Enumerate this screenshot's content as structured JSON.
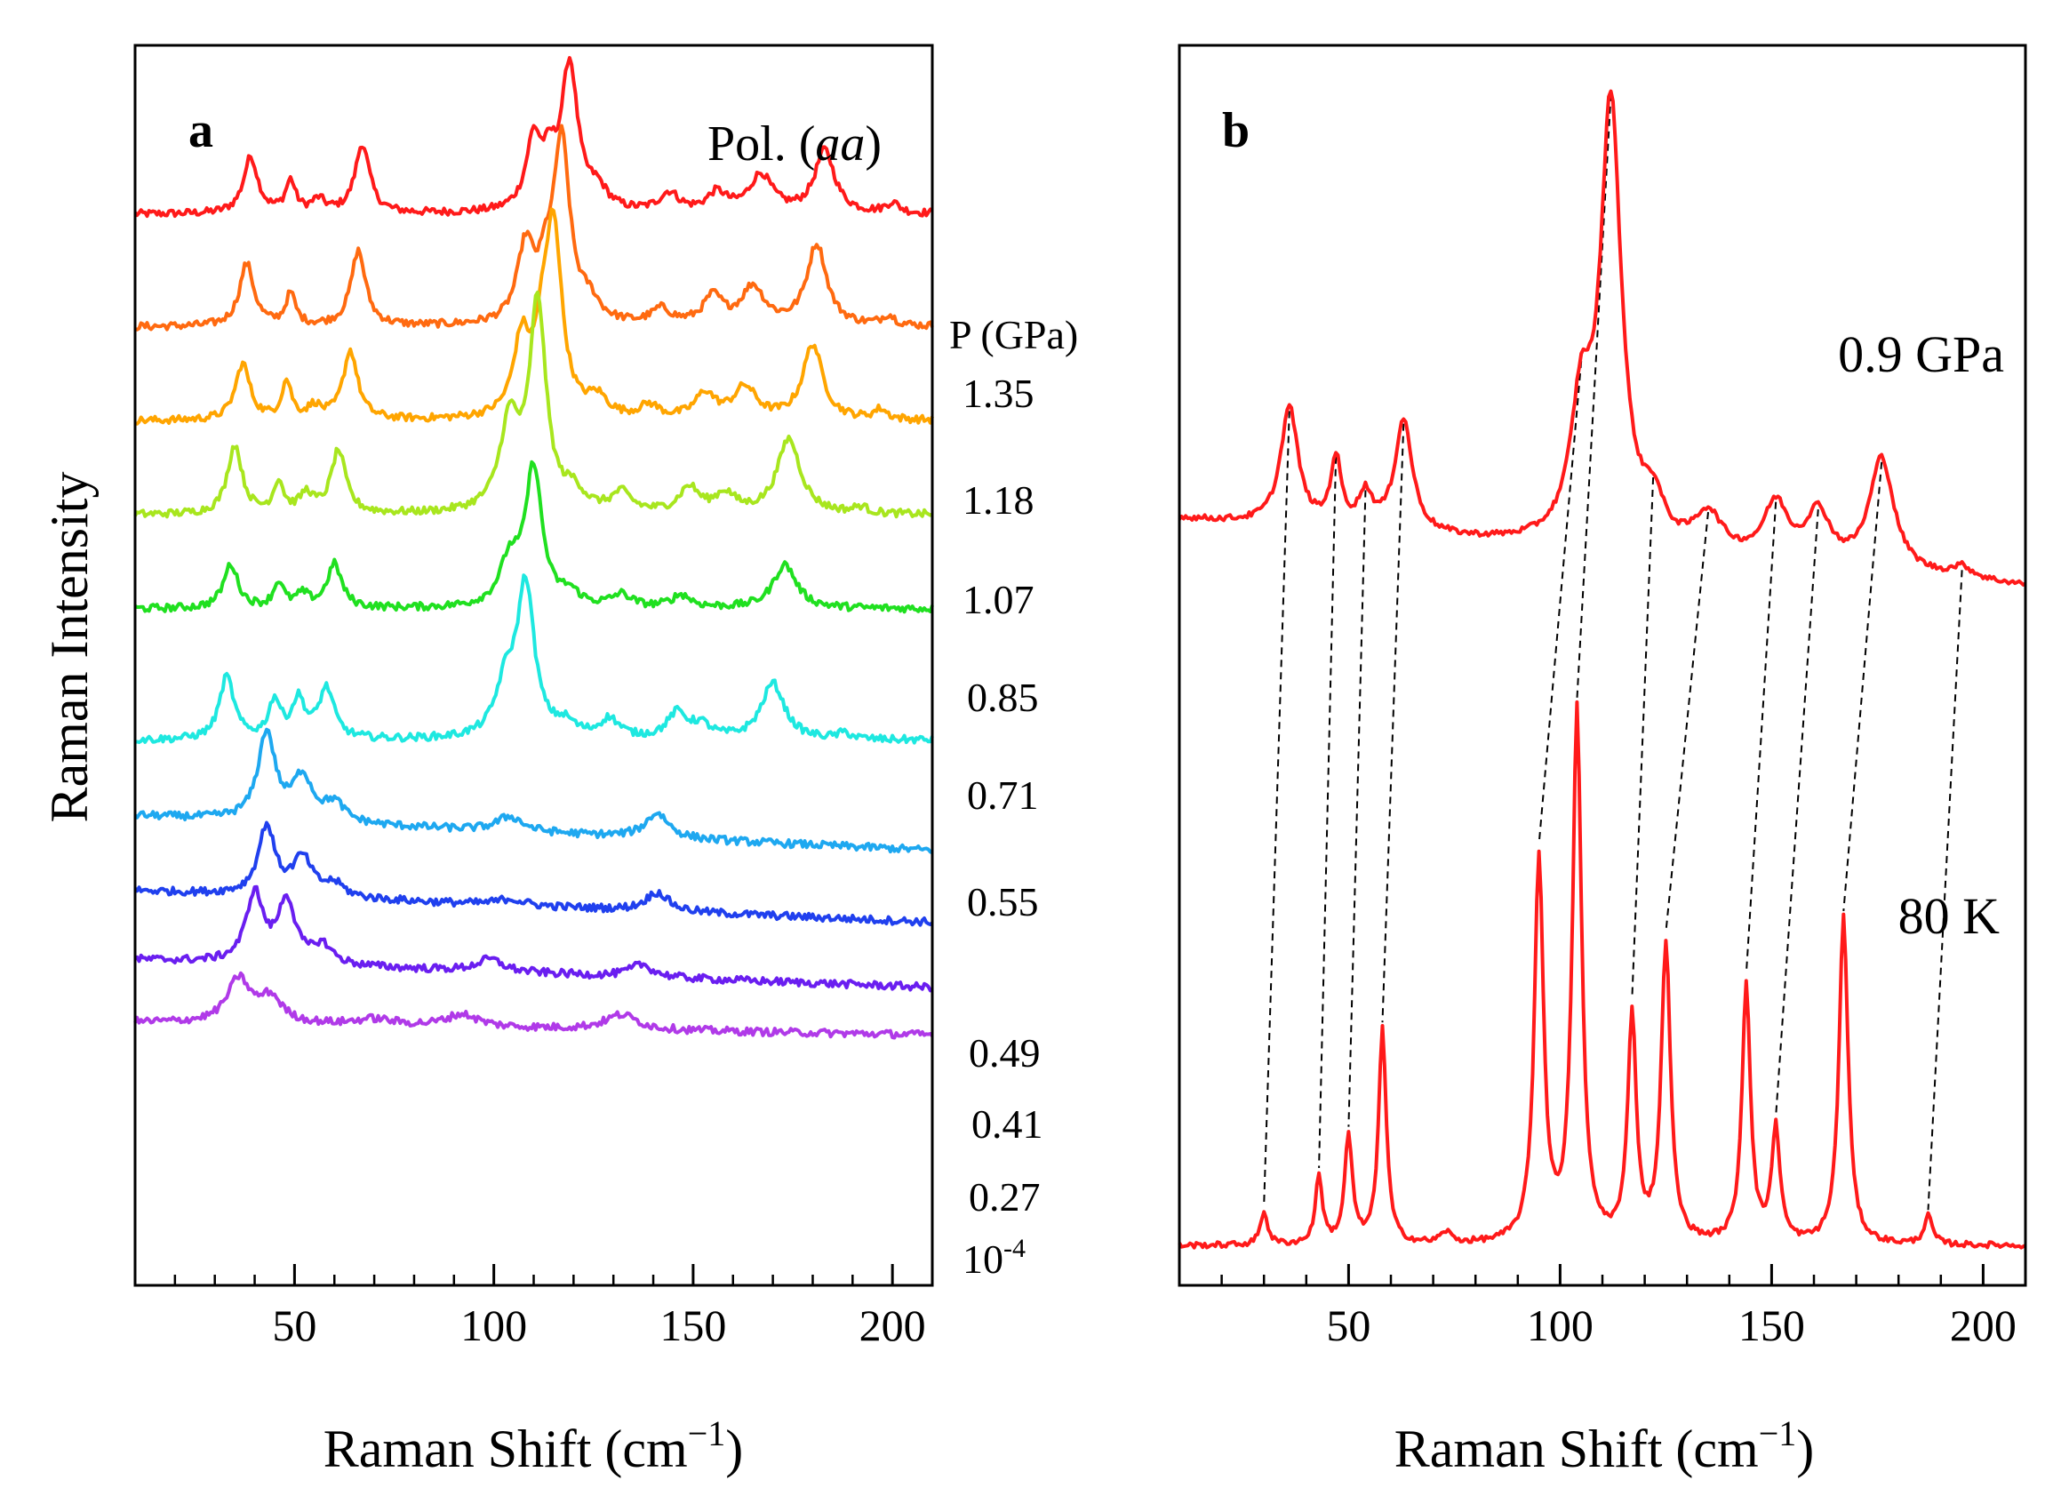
{
  "chart_data": [
    {
      "type": "line",
      "panel_label": "a",
      "annotation": "Pol. (aa)",
      "annotation_prefix": "Pol. (",
      "annotation_italic": "aa",
      "annotation_suffix": ")",
      "xlabel_main": "Raman Shift (cm",
      "xlabel_sup": "−1",
      "xlabel_close": ")",
      "ylabel": "Raman Intensity",
      "xlim": [
        10,
        210
      ],
      "xticks": [
        50,
        100,
        150,
        200
      ],
      "ylim": [
        -0.2,
        9.7
      ],
      "pressure_header": "P (GPa)",
      "series": [
        {
          "name": "1.35",
          "label": "1.35",
          "color": "#ff1a1a",
          "baseline": 8.35,
          "slope": 0,
          "peaks": [
            [
              39,
              0.45,
              2.2
            ],
            [
              49,
              0.25,
              1.5
            ],
            [
              56,
              0.1,
              2
            ],
            [
              67,
              0.55,
              2.2
            ],
            [
              110,
              0.55,
              2.3
            ],
            [
              114,
              0.3,
              2
            ],
            [
              119,
              1.15,
              2.5
            ],
            [
              126,
              0.15,
              3
            ],
            [
              144,
              0.15,
              3
            ],
            [
              156,
              0.15,
              3
            ],
            [
              167,
              0.3,
              3.5
            ],
            [
              183,
              0.5,
              3
            ],
            [
              200,
              0.08,
              2
            ]
          ]
        },
        {
          "name": "1.18",
          "label": "1.18",
          "color": "#ff6a10",
          "baseline": 7.45,
          "slope": 0,
          "peaks": [
            [
              38,
              0.5,
              2.2
            ],
            [
              49,
              0.25,
              1.5
            ],
            [
              66,
              0.6,
              2.2
            ],
            [
              108,
              0.6,
              2.5
            ],
            [
              113,
              0.3,
              2
            ],
            [
              117,
              1.45,
              2.5
            ],
            [
              124,
              0.15,
              3
            ],
            [
              142,
              0.12,
              3
            ],
            [
              155,
              0.22,
              3
            ],
            [
              165,
              0.3,
              3.5
            ],
            [
              181,
              0.65,
              3
            ],
            [
              199,
              0.08,
              2
            ]
          ]
        },
        {
          "name": "1.07",
          "label": "1.07",
          "color": "#ffa500",
          "baseline": 6.7,
          "slope": 0,
          "peaks": [
            [
              37,
              0.45,
              2.2
            ],
            [
              48,
              0.3,
              1.5
            ],
            [
              55,
              0.1,
              2
            ],
            [
              64,
              0.55,
              2.2
            ],
            [
              107,
              0.6,
              2.5
            ],
            [
              112,
              0.4,
              2
            ],
            [
              115,
              1.5,
              2.5
            ],
            [
              126,
              0.15,
              3
            ],
            [
              139,
              0.1,
              3
            ],
            [
              153,
              0.2,
              3
            ],
            [
              163,
              0.25,
              3.5
            ],
            [
              180,
              0.6,
              3
            ],
            [
              197,
              0.08,
              2
            ]
          ]
        },
        {
          "name": "0.85",
          "label": "0.85",
          "color": "#a8e61e",
          "baseline": 5.95,
          "slope": 0,
          "peaks": [
            [
              35,
              0.55,
              2.2
            ],
            [
              46,
              0.25,
              1.5
            ],
            [
              53,
              0.15,
              2
            ],
            [
              61,
              0.5,
              2.2
            ],
            [
              104,
              0.7,
              3
            ],
            [
              111,
              1.65,
              2.5
            ],
            [
              120,
              0.15,
              3
            ],
            [
              132,
              0.15,
              3
            ],
            [
              149,
              0.2,
              3
            ],
            [
              158,
              0.15,
              3
            ],
            [
              174,
              0.6,
              3.5
            ],
            [
              192,
              0.05,
              2
            ]
          ]
        },
        {
          "name": "0.71",
          "label": "0.71",
          "color": "#20e020",
          "baseline": 5.2,
          "slope": 0,
          "peaks": [
            [
              34,
              0.35,
              2.2
            ],
            [
              46,
              0.2,
              1.5
            ],
            [
              52,
              0.1,
              2
            ],
            [
              60,
              0.35,
              2.2
            ],
            [
              104,
              0.35,
              3
            ],
            [
              110,
              1.1,
              2.5
            ],
            [
              119,
              0.1,
              3
            ],
            [
              132,
              0.1,
              3
            ],
            [
              147,
              0.1,
              3
            ],
            [
              173,
              0.35,
              3.5
            ]
          ]
        },
        {
          "name": "0.55",
          "label": "0.55",
          "color": "#1ee8e0",
          "baseline": 4.15,
          "slope": 0,
          "peaks": [
            [
              33,
              0.5,
              2.2
            ],
            [
              45,
              0.3,
              1.8
            ],
            [
              51,
              0.3,
              2
            ],
            [
              58,
              0.4,
              2.3
            ],
            [
              103,
              0.4,
              3
            ],
            [
              108,
              1.2,
              2.6
            ],
            [
              118,
              0.1,
              3
            ],
            [
              129,
              0.15,
              3
            ],
            [
              146,
              0.2,
              3
            ],
            [
              152,
              0.1,
              3
            ],
            [
              170,
              0.45,
              3.5
            ],
            [
              188,
              0.05,
              2
            ]
          ]
        },
        {
          "name": "0.49",
          "label": "0.49",
          "color": "#1ea8f0",
          "baseline": 3.55,
          "slope": -0.00138,
          "peaks": [
            [
              43,
              0.7,
              2.6
            ],
            [
              52,
              0.35,
              3
            ],
            [
              60,
              0.15,
              3
            ],
            [
              104,
              0.12,
              4
            ],
            [
              141,
              0.2,
              3.5
            ]
          ]
        },
        {
          "name": "0.41",
          "label": "0.41",
          "color": "#2040ee",
          "baseline": 2.95,
          "slope": -0.00125,
          "peaks": [
            [
              43,
              0.55,
              2.5
            ],
            [
              52,
              0.3,
              3
            ],
            [
              60,
              0.1,
              3
            ],
            [
              104,
              0.05,
              4
            ],
            [
              141,
              0.15,
              3.5
            ]
          ]
        },
        {
          "name": "0.27",
          "label": "0.27",
          "color": "#6a1ef0",
          "baseline": 2.4,
          "slope": -0.0011,
          "peaks": [
            [
              40,
              0.55,
              2.6
            ],
            [
              48,
              0.5,
              2.6
            ],
            [
              57,
              0.15,
              3
            ],
            [
              99,
              0.1,
              4
            ],
            [
              137,
              0.1,
              3.5
            ]
          ]
        },
        {
          "name": "10-4",
          "label": "10",
          "label_sup": "-4",
          "color": "#b03ae8",
          "baseline": 1.9,
          "slope": -0.0005,
          "peaks": [
            [
              36,
              0.35,
              3.5
            ],
            [
              44,
              0.2,
              3.5
            ],
            [
              70,
              0.05,
              6
            ],
            [
              92,
              0.1,
              5
            ],
            [
              132,
              0.12,
              5
            ]
          ]
        }
      ]
    },
    {
      "type": "line",
      "panel_label": "b",
      "xlabel_main": "Raman Shift (cm",
      "xlabel_sup": "−1",
      "xlabel_close": ")",
      "xlim": [
        10,
        210
      ],
      "xticks": [
        50,
        100,
        150,
        200
      ],
      "ylim": [
        0,
        11
      ],
      "series": [
        {
          "name": "0.9 GPa",
          "label": "0.9 GPa",
          "color": "#ff1a1a",
          "baseline": 6.8,
          "slope": -0.003,
          "peaks": [
            [
              36,
              1.05,
              2.5
            ],
            [
              47,
              0.6,
              1.5
            ],
            [
              54,
              0.3,
              2
            ],
            [
              63,
              1.0,
              2.5
            ],
            [
              105,
              1.1,
              3
            ],
            [
              112,
              3.9,
              3
            ],
            [
              122,
              0.35,
              3
            ],
            [
              135,
              0.35,
              4
            ],
            [
              151,
              0.5,
              3.5
            ],
            [
              161,
              0.45,
              3.5
            ],
            [
              176,
              1.0,
              3.5
            ],
            [
              195,
              0.1,
              3
            ]
          ]
        },
        {
          "name": "80 K",
          "label": "80 K",
          "color": "#ff1a1a",
          "baseline": 0.35,
          "slope": 0,
          "peaks": [
            [
              30,
              0.3,
              1
            ],
            [
              43,
              0.6,
              1
            ],
            [
              50,
              0.95,
              1.1
            ],
            [
              58,
              1.9,
              1.1
            ],
            [
              73,
              0.1,
              1.5
            ],
            [
              95,
              3.4,
              1.3
            ],
            [
              104,
              4.7,
              1.3
            ],
            [
              117,
              2.0,
              1.2
            ],
            [
              125,
              2.65,
              1.3
            ],
            [
              144,
              2.3,
              1.2
            ],
            [
              151,
              1.0,
              1.2
            ],
            [
              167,
              2.9,
              1.3
            ],
            [
              187,
              0.25,
              1.2
            ]
          ]
        }
      ],
      "correlation_pairs": [
        [
          36,
          30
        ],
        [
          47,
          43
        ],
        [
          54,
          50
        ],
        [
          63,
          58
        ],
        [
          105,
          95
        ],
        [
          112,
          104
        ],
        [
          122,
          117
        ],
        [
          135,
          125
        ],
        [
          151,
          144
        ],
        [
          161,
          151
        ],
        [
          176,
          167
        ],
        [
          195,
          187
        ]
      ]
    }
  ]
}
